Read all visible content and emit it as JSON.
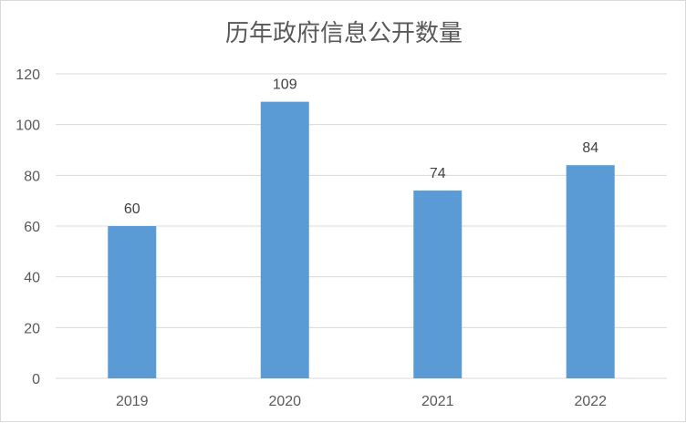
{
  "chart_data": {
    "type": "bar",
    "title": "历年政府信息公开数量",
    "xlabel": "",
    "ylabel": "",
    "categories": [
      "2019",
      "2020",
      "2021",
      "2022"
    ],
    "values": [
      60,
      109,
      74,
      84
    ],
    "ylim": [
      0,
      120
    ],
    "yticks": [
      0,
      20,
      40,
      60,
      80,
      100,
      120
    ],
    "grid": true,
    "legend": "none",
    "bar_color": "#5b9bd5"
  }
}
